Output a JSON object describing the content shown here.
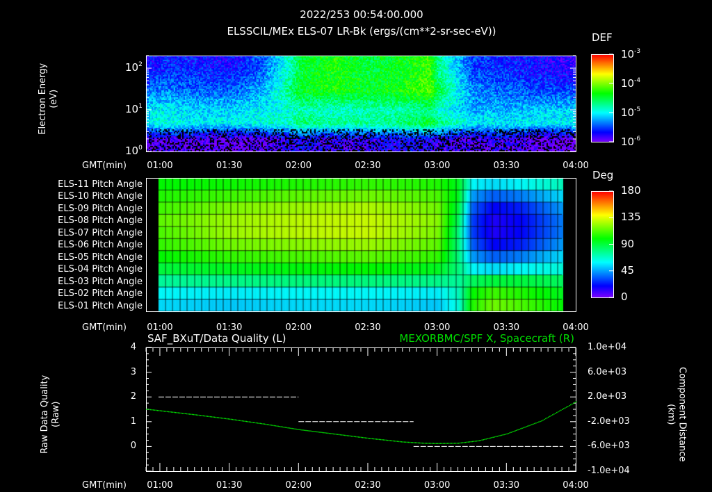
{
  "header": {
    "title": "2022/253 00:54:00.000",
    "subtitle": "ELSSCIL/MEx ELS-07 LR-Bk  (ergs/(cm**2-sr-sec-eV))"
  },
  "time_axis_label": "GMT(min)",
  "time_ticks": [
    "01:00",
    "01:30",
    "02:00",
    "02:30",
    "03:00",
    "03:30",
    "04:00"
  ],
  "colors": {
    "background": "#000000",
    "axes": "#ffffff",
    "spacecraft_line": "#00ff00",
    "quality_line": "#ffffff"
  },
  "chart_data": [
    {
      "type": "heatmap",
      "title": "ELSSCIL/MEx ELS-07 LR-Bk  (ergs/(cm**2-sr-sec-eV))",
      "ylabel_lines": [
        "Electron Energy",
        "(eV)"
      ],
      "y_scale": "log",
      "ylim": [
        1,
        200
      ],
      "y_ticks": [
        {
          "base": "10",
          "exp": "0"
        },
        {
          "base": "10",
          "exp": "1"
        },
        {
          "base": "10",
          "exp": "2"
        }
      ],
      "xlim_hours": [
        0.9,
        4.0
      ],
      "colorbar": {
        "label": "DEF",
        "scale": "log",
        "range": [
          1e-06,
          0.001
        ],
        "ticks": [
          {
            "base": "10",
            "exp": "-3"
          },
          {
            "base": "10",
            "exp": "-4"
          },
          {
            "base": "10",
            "exp": "-5"
          },
          {
            "base": "10",
            "exp": "-6"
          }
        ]
      },
      "times_hours": [
        0.9,
        1.0,
        1.25,
        1.5,
        1.75,
        1.95,
        2.0,
        2.25,
        2.5,
        2.75,
        2.95,
        3.0,
        3.25,
        3.5,
        3.75,
        4.0
      ],
      "energies_eV": [
        2,
        5,
        10,
        30,
        100
      ],
      "log10_def": [
        [
          -6.0,
          -5.9,
          -5.9,
          -6.0,
          -5.9,
          -5.8,
          -5.7,
          -5.8,
          -5.8,
          -5.7,
          -5.7,
          -5.8,
          -5.9,
          -5.8,
          -6.0,
          -6.0
        ],
        [
          -5.0,
          -4.9,
          -5.0,
          -5.0,
          -4.9,
          -4.8,
          -4.6,
          -4.7,
          -4.7,
          -4.6,
          -4.4,
          -4.6,
          -5.0,
          -5.0,
          -5.0,
          -5.0
        ],
        [
          -5.1,
          -5.0,
          -5.1,
          -5.1,
          -5.0,
          -4.9,
          -4.8,
          -4.9,
          -4.8,
          -4.8,
          -4.7,
          -4.9,
          -5.2,
          -5.2,
          -5.1,
          -5.1
        ],
        [
          -5.4,
          -5.3,
          -5.4,
          -5.4,
          -5.2,
          -4.6,
          -4.4,
          -4.3,
          -4.4,
          -4.3,
          -4.1,
          -4.5,
          -5.3,
          -5.4,
          -5.5,
          -5.5
        ],
        [
          -5.7,
          -5.6,
          -5.6,
          -5.7,
          -5.4,
          -4.8,
          -4.5,
          -4.3,
          -4.5,
          -4.4,
          -4.2,
          -4.7,
          -5.5,
          -5.6,
          -5.7,
          -5.8
        ]
      ]
    },
    {
      "type": "heatmap",
      "title": "Pitch Angle",
      "rows": [
        "ELS-11 Pitch Angle",
        "ELS-10 Pitch Angle",
        "ELS-09 Pitch Angle",
        "ELS-08 Pitch Angle",
        "ELS-07 Pitch Angle",
        "ELS-06 Pitch Angle",
        "ELS-05 Pitch Angle",
        "ELS-04 Pitch Angle",
        "ELS-03 Pitch Angle",
        "ELS-02 Pitch Angle",
        "ELS-01 Pitch Angle"
      ],
      "times_hours": [
        0.99,
        1.5,
        2.0,
        2.5,
        3.0,
        3.15,
        3.25,
        3.4,
        3.6,
        3.9
      ],
      "values_deg": [
        [
          100,
          102,
          105,
          108,
          105,
          95,
          60,
          55,
          60,
          70
        ],
        [
          105,
          110,
          115,
          118,
          112,
          95,
          45,
          35,
          40,
          55
        ],
        [
          110,
          120,
          125,
          128,
          118,
          90,
          35,
          20,
          25,
          45
        ],
        [
          115,
          125,
          130,
          132,
          122,
          85,
          30,
          15,
          20,
          40
        ],
        [
          112,
          125,
          130,
          132,
          120,
          80,
          30,
          15,
          20,
          40
        ],
        [
          108,
          118,
          122,
          125,
          115,
          80,
          35,
          20,
          25,
          45
        ],
        [
          100,
          108,
          112,
          115,
          108,
          80,
          45,
          35,
          40,
          55
        ],
        [
          90,
          95,
          98,
          100,
          95,
          80,
          60,
          55,
          60,
          65
        ],
        [
          75,
          78,
          80,
          80,
          78,
          75,
          85,
          90,
          90,
          85
        ],
        [
          60,
          58,
          60,
          60,
          58,
          70,
          100,
          110,
          105,
          95
        ],
        [
          55,
          52,
          55,
          55,
          52,
          65,
          105,
          118,
          112,
          100
        ]
      ],
      "colorbar": {
        "label": "Deg",
        "range": [
          0,
          180
        ],
        "ticks": [
          "180",
          "135",
          "90",
          "45",
          "0"
        ]
      }
    },
    {
      "type": "line",
      "title_left": "SAF_BXuT/Data Quality (L)",
      "title_right": "MEXORBMC/SPF X, Spacecraft (R)",
      "ylabel_left_lines": [
        "Raw Data Quality",
        "(Raw)"
      ],
      "ylabel_right_lines": [
        "Component Distance",
        "(km)"
      ],
      "ylim_left": [
        -1,
        4
      ],
      "yticks_left": [
        "4",
        "3",
        "2",
        "1",
        "0"
      ],
      "ylim_right": [
        -10000,
        10000
      ],
      "yticks_right": [
        "1.0e+04",
        "6.0e+03",
        "2.0e+03",
        "-2.0e+03",
        "-6.0e+03",
        "-1.0e+04"
      ],
      "series": [
        {
          "name": "Data Quality (L)",
          "axis": "left",
          "segments": [
            {
              "start_hours": 0.99,
              "end_hours": 2.0,
              "value": 2
            },
            {
              "start_hours": 2.0,
              "end_hours": 2.83,
              "value": 1
            },
            {
              "start_hours": 2.83,
              "end_hours": 3.91,
              "value": 0
            }
          ]
        },
        {
          "name": "MEXORBMC/SPF X, Spacecraft (R)",
          "axis": "right",
          "x_hours": [
            0.9,
            1.25,
            1.5,
            1.75,
            2.0,
            2.25,
            2.5,
            2.75,
            2.9,
            3.0,
            3.15,
            3.3,
            3.5,
            3.75,
            4.0
          ],
          "y_km": [
            100,
            -800,
            -1500,
            -2300,
            -3200,
            -3900,
            -4600,
            -5200,
            -5400,
            -5450,
            -5400,
            -5000,
            -3900,
            -1800,
            1300
          ]
        }
      ]
    }
  ]
}
